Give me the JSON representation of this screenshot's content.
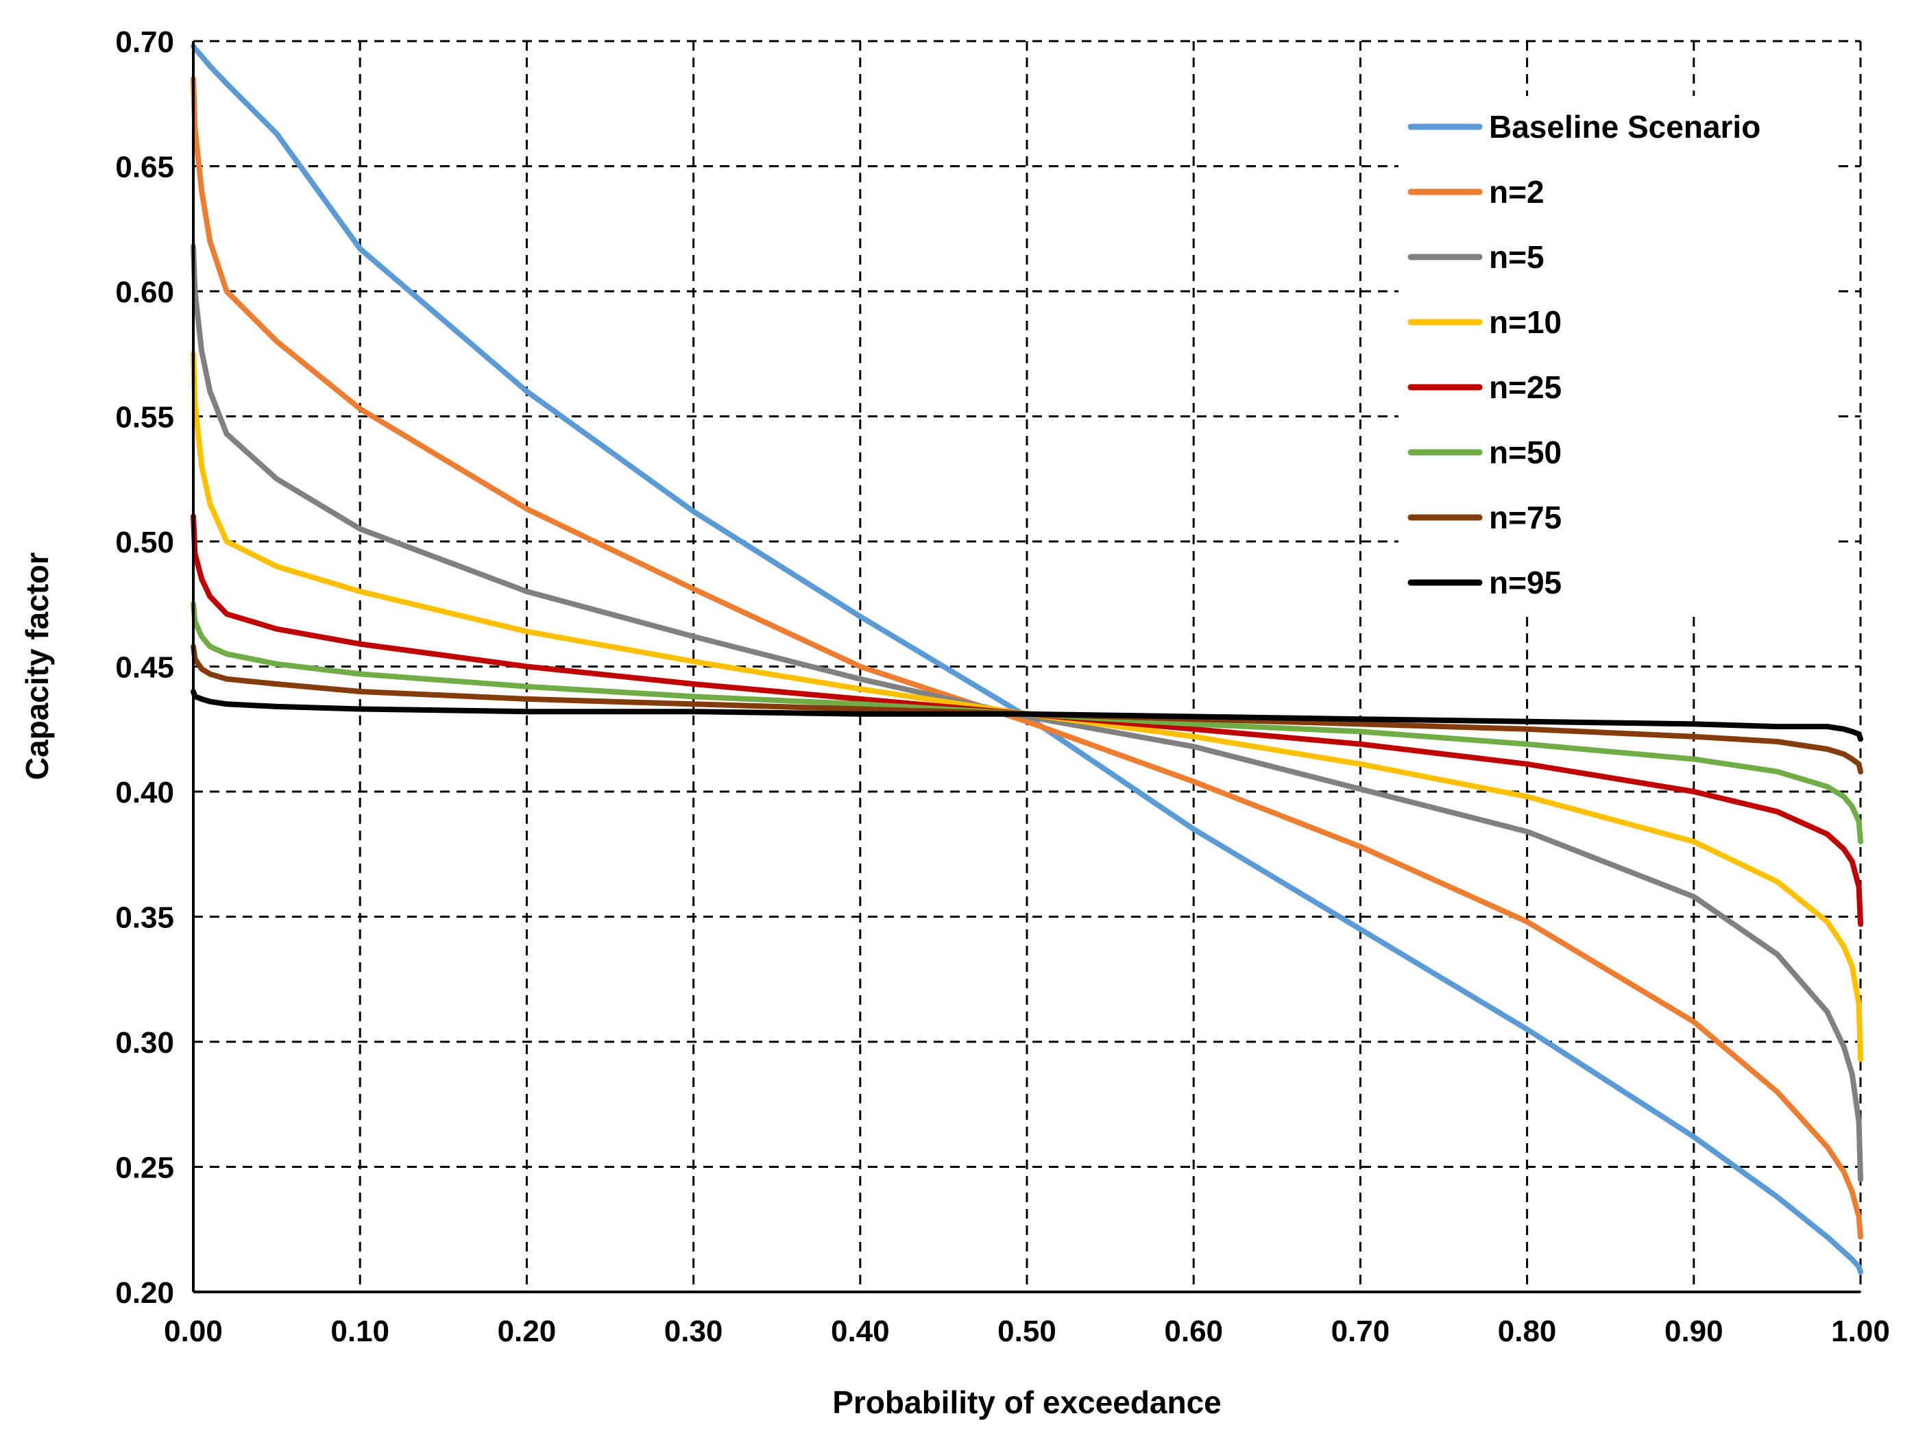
{
  "chart_data": {
    "type": "line",
    "title": "",
    "xlabel": "Probability of exceedance",
    "ylabel": "Capacity factor",
    "xlim": [
      0,
      1
    ],
    "ylim": [
      0.2,
      0.7
    ],
    "grid": true,
    "legend_position": "top-right",
    "x_tick_labels": [
      "0.00",
      "0.10",
      "0.20",
      "0.30",
      "0.40",
      "0.50",
      "0.60",
      "0.70",
      "0.80",
      "0.90",
      "1.00"
    ],
    "y_tick_labels": [
      "0.20",
      "0.25",
      "0.30",
      "0.35",
      "0.40",
      "0.45",
      "0.50",
      "0.55",
      "0.60",
      "0.65",
      "0.70"
    ],
    "x": [
      0,
      0.001,
      0.005,
      0.01,
      0.02,
      0.05,
      0.1,
      0.2,
      0.3,
      0.4,
      0.5,
      0.6,
      0.7,
      0.8,
      0.9,
      0.95,
      0.98,
      0.99,
      0.995,
      0.999,
      1.0
    ],
    "series": [
      {
        "name": "Baseline Scenario",
        "color": "#5B9BD5",
        "values": [
          0.698,
          0.697,
          0.694,
          0.69,
          0.683,
          0.663,
          0.617,
          0.56,
          0.512,
          0.47,
          0.43,
          0.385,
          0.345,
          0.305,
          0.262,
          0.238,
          0.222,
          0.216,
          0.213,
          0.21,
          0.208
        ]
      },
      {
        "name": "n=2",
        "color": "#ED7D31",
        "values": [
          0.685,
          0.665,
          0.64,
          0.62,
          0.6,
          0.58,
          0.553,
          0.513,
          0.481,
          0.45,
          0.428,
          0.404,
          0.378,
          0.348,
          0.308,
          0.28,
          0.258,
          0.248,
          0.24,
          0.23,
          0.222
        ]
      },
      {
        "name": "n=5",
        "color": "#808080",
        "values": [
          0.618,
          0.6,
          0.576,
          0.56,
          0.543,
          0.525,
          0.505,
          0.48,
          0.462,
          0.445,
          0.43,
          0.418,
          0.401,
          0.384,
          0.358,
          0.335,
          0.312,
          0.298,
          0.287,
          0.268,
          0.245
        ]
      },
      {
        "name": "n=10",
        "color": "#FFC000",
        "values": [
          0.575,
          0.555,
          0.53,
          0.515,
          0.5,
          0.49,
          0.48,
          0.464,
          0.452,
          0.441,
          0.431,
          0.422,
          0.411,
          0.398,
          0.38,
          0.364,
          0.348,
          0.338,
          0.33,
          0.315,
          0.293
        ]
      },
      {
        "name": "n=25",
        "color": "#C00000",
        "values": [
          0.51,
          0.495,
          0.485,
          0.478,
          0.471,
          0.465,
          0.459,
          0.45,
          0.443,
          0.437,
          0.431,
          0.425,
          0.419,
          0.411,
          0.4,
          0.392,
          0.383,
          0.377,
          0.372,
          0.362,
          0.347
        ]
      },
      {
        "name": "n=50",
        "color": "#70AD47",
        "values": [
          0.475,
          0.468,
          0.462,
          0.458,
          0.455,
          0.451,
          0.447,
          0.442,
          0.438,
          0.435,
          0.431,
          0.427,
          0.424,
          0.419,
          0.413,
          0.408,
          0.402,
          0.398,
          0.394,
          0.388,
          0.38
        ]
      },
      {
        "name": "n=75",
        "color": "#843C0C",
        "values": [
          0.458,
          0.453,
          0.449,
          0.447,
          0.445,
          0.443,
          0.44,
          0.437,
          0.435,
          0.433,
          0.431,
          0.429,
          0.427,
          0.425,
          0.422,
          0.42,
          0.417,
          0.415,
          0.413,
          0.411,
          0.408
        ]
      },
      {
        "name": "n=95",
        "color": "#000000",
        "values": [
          0.44,
          0.438,
          0.437,
          0.436,
          0.435,
          0.434,
          0.433,
          0.432,
          0.432,
          0.431,
          0.431,
          0.43,
          0.429,
          0.428,
          0.427,
          0.426,
          0.426,
          0.425,
          0.424,
          0.423,
          0.421
        ]
      }
    ]
  }
}
